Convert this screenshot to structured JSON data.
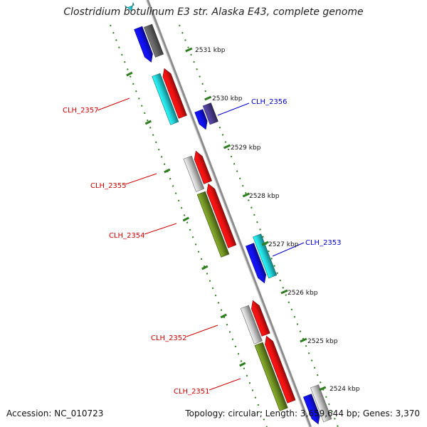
{
  "title": "Clostridium botulinum E3 str. Alaska E43, complete genome",
  "accession_text": "Accession: NC_010723",
  "summary_text": "Topology: circular; Length: 3,659,644 bp; Genes: 3,370",
  "colors": {
    "backbone": "#8c8c8c",
    "ruler": "#2e7d1e",
    "red": "#ee1111",
    "blue": "#1010ee",
    "cyan": "#22cfd6",
    "olive": "#6e8e22",
    "lightgray": "#c4c4c4",
    "darkgray": "#606060",
    "purple": "#4b3c8e",
    "label_red": "#cc0000",
    "label_blue": "#0000cc"
  },
  "ticks": [
    {
      "label": "2531 kbp"
    },
    {
      "label": "2530 kbp"
    },
    {
      "label": "2529 kbp"
    },
    {
      "label": "2528 kbp"
    },
    {
      "label": "2527 kbp"
    },
    {
      "label": "2526 kbp"
    },
    {
      "label": "2525 kbp"
    },
    {
      "label": "2524 kbp"
    }
  ],
  "gene_labels": [
    {
      "label": "CLH_2357",
      "color": "red"
    },
    {
      "label": "CLH_2356",
      "color": "blue"
    },
    {
      "label": "CLH_2355",
      "color": "red"
    },
    {
      "label": "CLH_2354",
      "color": "red"
    },
    {
      "label": "CLH_2353",
      "color": "blue"
    },
    {
      "label": "CLH_2352",
      "color": "red"
    },
    {
      "label": "CLH_2351",
      "color": "red"
    }
  ],
  "features": [
    {
      "color": "cyan",
      "track": "outer-left"
    },
    {
      "color": "blue",
      "track": "outer-left"
    },
    {
      "color": "darkgray",
      "track": "inner-left"
    },
    {
      "color": "cyan",
      "track": "outer-left"
    },
    {
      "color": "red",
      "track": "inner-left"
    },
    {
      "color": "blue",
      "track": "inner-right"
    },
    {
      "color": "purple",
      "track": "outer-right"
    },
    {
      "color": "lightgray",
      "track": "outer-left"
    },
    {
      "color": "red",
      "track": "inner-left"
    },
    {
      "color": "olive",
      "track": "outer-left"
    },
    {
      "color": "red",
      "track": "inner-left"
    },
    {
      "color": "blue",
      "track": "inner-right"
    },
    {
      "color": "cyan",
      "track": "outer-right"
    },
    {
      "color": "lightgray",
      "track": "outer-left"
    },
    {
      "color": "red",
      "track": "inner-left"
    },
    {
      "color": "olive",
      "track": "outer-left"
    },
    {
      "color": "red",
      "track": "inner-left"
    },
    {
      "color": "blue",
      "track": "inner-right"
    },
    {
      "color": "lightgray",
      "track": "outer-right"
    }
  ]
}
